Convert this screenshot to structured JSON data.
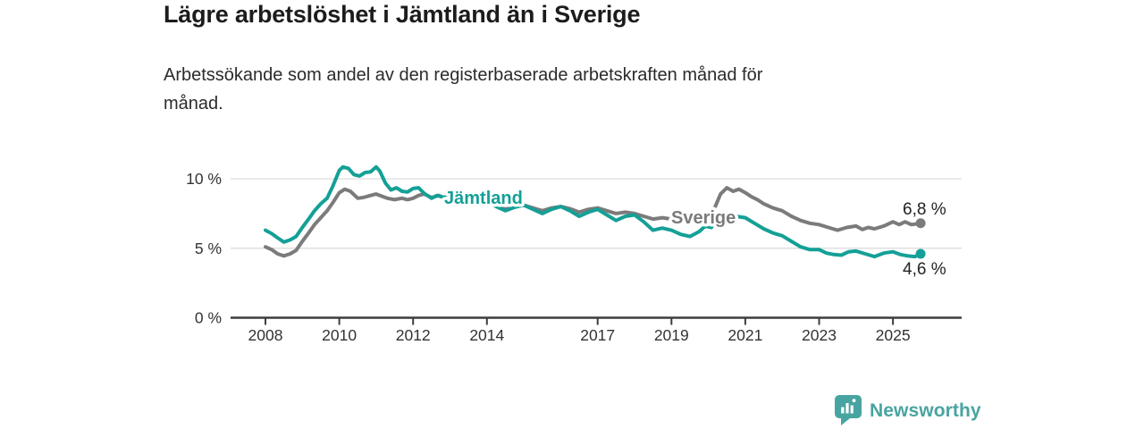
{
  "header": {
    "title": "Lägre arbetslöshet i Jämtland än i Sverige",
    "subtitle_line1": "Arbetssökande som andel av den registerbaserade arbetskraften månad för",
    "subtitle_line2": "månad."
  },
  "chart_data": {
    "type": "line",
    "title": "Lägre arbetslöshet i Jämtland än i Sverige",
    "x_unit": "year (monthly observations)",
    "y_unit": "percent of registered labour force",
    "xlim": [
      2008,
      2026
    ],
    "ylim": [
      0,
      12
    ],
    "grid": "horizontal",
    "legend_position": "inline-labels",
    "yticks": [
      {
        "value": 0,
        "label": "0 %"
      },
      {
        "value": 5,
        "label": "5 %"
      },
      {
        "value": 10,
        "label": "10 %"
      }
    ],
    "xticks": [
      {
        "value": 2008,
        "label": "2008"
      },
      {
        "value": 2010,
        "label": "2010"
      },
      {
        "value": 2012,
        "label": "2012"
      },
      {
        "value": 2014,
        "label": "2014"
      },
      {
        "value": 2017,
        "label": "2017"
      },
      {
        "value": 2019,
        "label": "2019"
      },
      {
        "value": 2021,
        "label": "2021"
      },
      {
        "value": 2023,
        "label": "2023"
      },
      {
        "value": 2025,
        "label": "2025"
      }
    ],
    "series": [
      {
        "name": "Sverige",
        "color": "#7b7b7b",
        "end_label": "6,8 %",
        "end_value": 6.8,
        "points": [
          [
            2008.0,
            5.1
          ],
          [
            2008.17,
            4.9
          ],
          [
            2008.33,
            4.6
          ],
          [
            2008.5,
            4.45
          ],
          [
            2008.67,
            4.6
          ],
          [
            2008.83,
            4.85
          ],
          [
            2009.0,
            5.5
          ],
          [
            2009.17,
            6.1
          ],
          [
            2009.33,
            6.7
          ],
          [
            2009.5,
            7.2
          ],
          [
            2009.67,
            7.7
          ],
          [
            2009.83,
            8.3
          ],
          [
            2010.0,
            9.0
          ],
          [
            2010.15,
            9.25
          ],
          [
            2010.3,
            9.1
          ],
          [
            2010.5,
            8.6
          ],
          [
            2010.65,
            8.65
          ],
          [
            2010.85,
            8.8
          ],
          [
            2011.0,
            8.9
          ],
          [
            2011.15,
            8.75
          ],
          [
            2011.3,
            8.6
          ],
          [
            2011.5,
            8.5
          ],
          [
            2011.7,
            8.6
          ],
          [
            2011.85,
            8.5
          ],
          [
            2012.0,
            8.6
          ],
          [
            2012.15,
            8.8
          ],
          [
            2012.3,
            8.9
          ],
          [
            2012.5,
            8.65
          ],
          [
            2012.7,
            8.8
          ],
          [
            2012.85,
            8.6
          ],
          [
            2013.0,
            8.8
          ],
          [
            2013.25,
            8.55
          ],
          [
            2013.5,
            8.3
          ],
          [
            2013.75,
            8.5
          ],
          [
            2014.0,
            8.4
          ],
          [
            2014.25,
            8.1
          ],
          [
            2014.5,
            7.8
          ],
          [
            2014.75,
            8.0
          ],
          [
            2015.0,
            8.1
          ],
          [
            2015.25,
            7.9
          ],
          [
            2015.5,
            7.7
          ],
          [
            2015.75,
            7.9
          ],
          [
            2016.0,
            8.0
          ],
          [
            2016.25,
            7.85
          ],
          [
            2016.5,
            7.6
          ],
          [
            2016.75,
            7.8
          ],
          [
            2017.0,
            7.9
          ],
          [
            2017.25,
            7.7
          ],
          [
            2017.5,
            7.5
          ],
          [
            2017.75,
            7.6
          ],
          [
            2018.0,
            7.5
          ],
          [
            2018.25,
            7.3
          ],
          [
            2018.5,
            7.1
          ],
          [
            2018.75,
            7.2
          ],
          [
            2019.0,
            7.1
          ],
          [
            2019.25,
            7.0
          ],
          [
            2019.5,
            6.9
          ],
          [
            2019.75,
            7.0
          ],
          [
            2020.0,
            7.3
          ],
          [
            2020.17,
            7.9
          ],
          [
            2020.33,
            8.9
          ],
          [
            2020.5,
            9.35
          ],
          [
            2020.67,
            9.1
          ],
          [
            2020.83,
            9.25
          ],
          [
            2021.0,
            9.0
          ],
          [
            2021.17,
            8.7
          ],
          [
            2021.33,
            8.5
          ],
          [
            2021.5,
            8.2
          ],
          [
            2021.75,
            7.9
          ],
          [
            2022.0,
            7.7
          ],
          [
            2022.25,
            7.3
          ],
          [
            2022.5,
            7.0
          ],
          [
            2022.75,
            6.8
          ],
          [
            2023.0,
            6.7
          ],
          [
            2023.25,
            6.5
          ],
          [
            2023.5,
            6.3
          ],
          [
            2023.75,
            6.5
          ],
          [
            2024.0,
            6.6
          ],
          [
            2024.17,
            6.35
          ],
          [
            2024.33,
            6.5
          ],
          [
            2024.5,
            6.4
          ],
          [
            2024.75,
            6.6
          ],
          [
            2025.0,
            6.9
          ],
          [
            2025.17,
            6.7
          ],
          [
            2025.33,
            6.9
          ],
          [
            2025.5,
            6.7
          ],
          [
            2025.75,
            6.8
          ]
        ]
      },
      {
        "name": "Jämtland",
        "color": "#14a096",
        "end_label": "4,6 %",
        "end_value": 4.6,
        "points": [
          [
            2008.0,
            6.3
          ],
          [
            2008.17,
            6.05
          ],
          [
            2008.33,
            5.75
          ],
          [
            2008.5,
            5.45
          ],
          [
            2008.67,
            5.6
          ],
          [
            2008.83,
            5.85
          ],
          [
            2009.0,
            6.5
          ],
          [
            2009.17,
            7.1
          ],
          [
            2009.33,
            7.7
          ],
          [
            2009.5,
            8.2
          ],
          [
            2009.67,
            8.6
          ],
          [
            2009.83,
            9.5
          ],
          [
            2010.0,
            10.6
          ],
          [
            2010.1,
            10.85
          ],
          [
            2010.25,
            10.75
          ],
          [
            2010.4,
            10.3
          ],
          [
            2010.55,
            10.2
          ],
          [
            2010.7,
            10.45
          ],
          [
            2010.85,
            10.5
          ],
          [
            2011.0,
            10.85
          ],
          [
            2011.1,
            10.55
          ],
          [
            2011.25,
            9.7
          ],
          [
            2011.4,
            9.2
          ],
          [
            2011.55,
            9.35
          ],
          [
            2011.7,
            9.1
          ],
          [
            2011.85,
            9.05
          ],
          [
            2012.0,
            9.3
          ],
          [
            2012.15,
            9.35
          ],
          [
            2012.3,
            8.95
          ],
          [
            2012.5,
            8.6
          ],
          [
            2012.65,
            8.8
          ],
          [
            2012.85,
            8.65
          ],
          [
            2013.0,
            8.9
          ],
          [
            2013.25,
            8.6
          ],
          [
            2013.5,
            8.3
          ],
          [
            2013.75,
            8.5
          ],
          [
            2014.0,
            8.4
          ],
          [
            2014.25,
            8.0
          ],
          [
            2014.5,
            7.7
          ],
          [
            2014.75,
            7.95
          ],
          [
            2015.0,
            8.1
          ],
          [
            2015.25,
            7.8
          ],
          [
            2015.5,
            7.5
          ],
          [
            2015.75,
            7.8
          ],
          [
            2016.0,
            8.0
          ],
          [
            2016.25,
            7.7
          ],
          [
            2016.5,
            7.3
          ],
          [
            2016.75,
            7.6
          ],
          [
            2017.0,
            7.8
          ],
          [
            2017.25,
            7.4
          ],
          [
            2017.5,
            7.0
          ],
          [
            2017.75,
            7.3
          ],
          [
            2018.0,
            7.4
          ],
          [
            2018.25,
            6.9
          ],
          [
            2018.5,
            6.3
          ],
          [
            2018.75,
            6.45
          ],
          [
            2019.0,
            6.3
          ],
          [
            2019.25,
            6.0
          ],
          [
            2019.5,
            5.85
          ],
          [
            2019.75,
            6.2
          ],
          [
            2019.92,
            6.6
          ],
          [
            2020.08,
            6.5
          ],
          [
            2020.25,
            7.2
          ],
          [
            2020.42,
            7.6
          ],
          [
            2020.58,
            7.45
          ],
          [
            2020.75,
            7.3
          ],
          [
            2021.0,
            7.2
          ],
          [
            2021.25,
            6.8
          ],
          [
            2021.5,
            6.4
          ],
          [
            2021.75,
            6.1
          ],
          [
            2022.0,
            5.9
          ],
          [
            2022.25,
            5.5
          ],
          [
            2022.5,
            5.1
          ],
          [
            2022.75,
            4.9
          ],
          [
            2023.0,
            4.9
          ],
          [
            2023.2,
            4.65
          ],
          [
            2023.4,
            4.55
          ],
          [
            2023.6,
            4.5
          ],
          [
            2023.8,
            4.75
          ],
          [
            2024.0,
            4.8
          ],
          [
            2024.25,
            4.6
          ],
          [
            2024.5,
            4.4
          ],
          [
            2024.75,
            4.65
          ],
          [
            2025.0,
            4.75
          ],
          [
            2025.2,
            4.55
          ],
          [
            2025.4,
            4.45
          ],
          [
            2025.6,
            4.4
          ],
          [
            2025.75,
            4.6
          ]
        ]
      }
    ]
  },
  "footer": {
    "brand": "Newsworthy",
    "brand_color": "#48a4a0",
    "logo_icon": "bar-chart-speech-bubble-icon"
  }
}
